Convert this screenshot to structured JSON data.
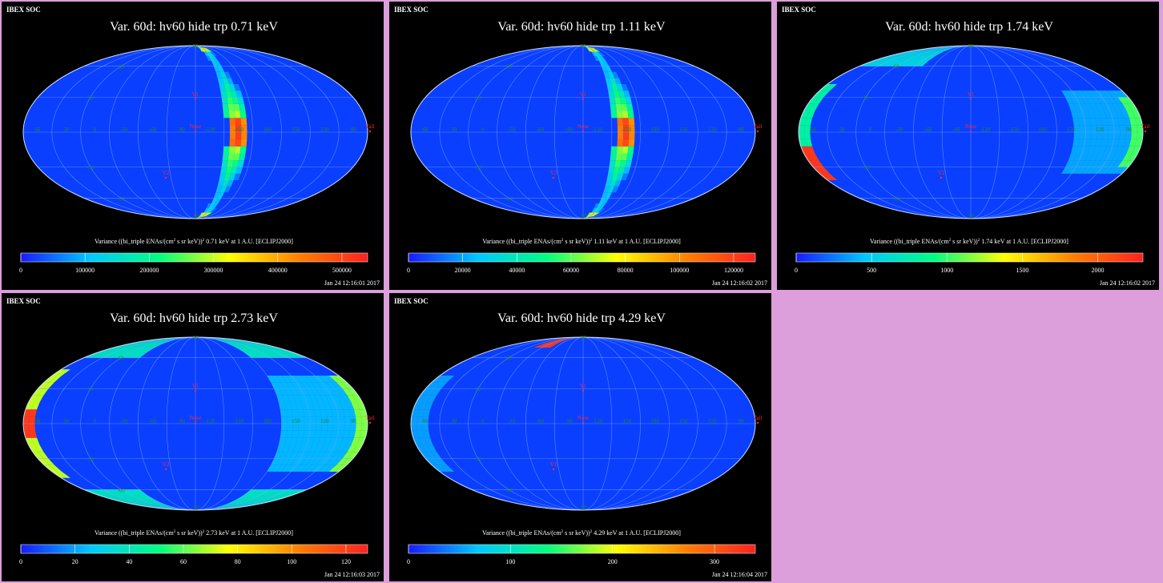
{
  "page": {
    "background": "#dc9fdb"
  },
  "panels": [
    {
      "header": "IBEX SOC",
      "title": "Var. 60d: hv60 hide trp 0.71 keV",
      "caption_prefix": "Variance ((bi_triple ENAs/(cm",
      "caption_mid": " s sr keV))",
      "caption_suffix": " 0.71 keV at 1 A.U. [ECLIPJ2000]",
      "timestamp": "Jan 24 12:16:01 2017",
      "colorbar_ticks": [
        "0",
        "100000",
        "200000",
        "300000",
        "400000",
        "500000"
      ]
    },
    {
      "header": "IBEX SOC",
      "title": "Var. 60d: hv60 hide trp 1.11 keV",
      "caption_prefix": "Variance ((bi_triple ENAs/(cm",
      "caption_mid": " s sr keV))",
      "caption_suffix": " 1.11 keV at 1 A.U. [ECLIPJ2000]",
      "timestamp": "Jan 24 12:16:02 2017",
      "colorbar_ticks": [
        "0",
        "20000",
        "40000",
        "60000",
        "80000",
        "100000",
        "120000"
      ]
    },
    {
      "header": "IBEX SOC",
      "title": "Var. 60d: hv60 hide trp 1.74 keV",
      "caption_prefix": "Variance ((bi_triple ENAs/(cm",
      "caption_mid": " s sr keV))",
      "caption_suffix": " 1.74 keV at 1 A.U. [ECLIPJ2000]",
      "timestamp": "Jan 24 12:16:02 2017",
      "colorbar_ticks": [
        "0",
        "500",
        "1000",
        "1500",
        "2000"
      ]
    },
    {
      "header": "IBEX SOC",
      "title": "Var. 60d: hv60 hide trp 2.73 keV",
      "caption_prefix": "Variance ((bi_triple ENAs/(cm",
      "caption_mid": " s sr keV))",
      "caption_suffix": " 2.73 keV at 1 A.U. [ECLIPJ2000]",
      "timestamp": "Jan 24 12:16:03 2017",
      "colorbar_ticks": [
        "0",
        "20",
        "40",
        "60",
        "80",
        "100",
        "120"
      ]
    },
    {
      "header": "IBEX SOC",
      "title": "Var. 60d: hv60 hide trp 4.29 keV",
      "caption_prefix": "Variance ((bi_triple ENAs/(cm",
      "caption_mid": " s sr keV))",
      "caption_suffix": " 4.29 keV at 1 A.U. [ECLIPJ2000]",
      "timestamp": "Jan 24 12:16:04 2017",
      "colorbar_ticks": [
        "0",
        "100",
        "200",
        "300"
      ]
    }
  ],
  "map_labels": {
    "lon": [
      "60",
      "30",
      "0",
      "-30",
      "-60",
      "-90",
      "-120",
      "-150",
      "180",
      "150",
      "120",
      "90"
    ],
    "lat": [
      "60",
      "30",
      "-30",
      "-60"
    ],
    "pole_lat": [
      "90",
      "-90"
    ],
    "markers": [
      "V1",
      "Nose",
      "V2",
      "Tail"
    ]
  },
  "colors": {
    "map_background": "#0a3fff",
    "grid": "#7fa8ff",
    "lon_label": "#1f8a1f",
    "marker": "#ff2a2a",
    "colorbar": [
      "#1a1aff",
      "#00c8ff",
      "#00ff80",
      "#ffff00",
      "#ff8000",
      "#ff2020"
    ]
  },
  "chart_data": [
    {
      "type": "heatmap",
      "projection": "mollweide",
      "title": "Var. 60d: hv60 hide trp 0.71 keV",
      "colorbar_label": "Variance ((bi_triple ENAs/(cm^2 s sr keV))^2) 0.71 keV at 1 A.U. [ECLIPJ2000]",
      "vmin": 0,
      "vmax": 540000,
      "features": "bright crescent band near ecliptic longitude -130, values up to ~540000"
    },
    {
      "type": "heatmap",
      "projection": "mollweide",
      "title": "Var. 60d: hv60 hide trp 1.11 keV",
      "colorbar_label": "Variance ((bi_triple ENAs/(cm^2 s sr keV))^2) 1.11 keV at 1 A.U. [ECLIPJ2000]",
      "vmin": 0,
      "vmax": 128000,
      "features": "bright crescent band near ecliptic longitude -130, values up to ~128000"
    },
    {
      "type": "heatmap",
      "projection": "mollweide",
      "title": "Var. 60d: hv60 hide trp 1.74 keV",
      "colorbar_label": "Variance ((bi_triple ENAs/(cm^2 s sr keV))^2) 1.74 keV at 1 A.U. [ECLIPJ2000]",
      "vmin": 0,
      "vmax": 2300,
      "features": "enhanced variance along left and right map edges, max ~2300"
    },
    {
      "type": "heatmap",
      "projection": "mollweide",
      "title": "Var. 60d: hv60 hide trp 2.73 keV",
      "colorbar_label": "Variance ((bi_triple ENAs/(cm^2 s sr keV))^2) 2.73 keV at 1 A.U. [ECLIPJ2000]",
      "vmin": 0,
      "vmax": 128,
      "features": "enhanced variance along left and right map edges, max ~128"
    },
    {
      "type": "heatmap",
      "projection": "mollweide",
      "title": "Var. 60d: hv60 hide trp 4.29 keV",
      "colorbar_label": "Variance ((bi_triple ENAs/(cm^2 s sr keV))^2) 4.29 keV at 1 A.U. [ECLIPJ2000]",
      "vmin": 0,
      "vmax": 340,
      "features": "mostly uniform low variance, small red patch near upper-left edge"
    }
  ]
}
